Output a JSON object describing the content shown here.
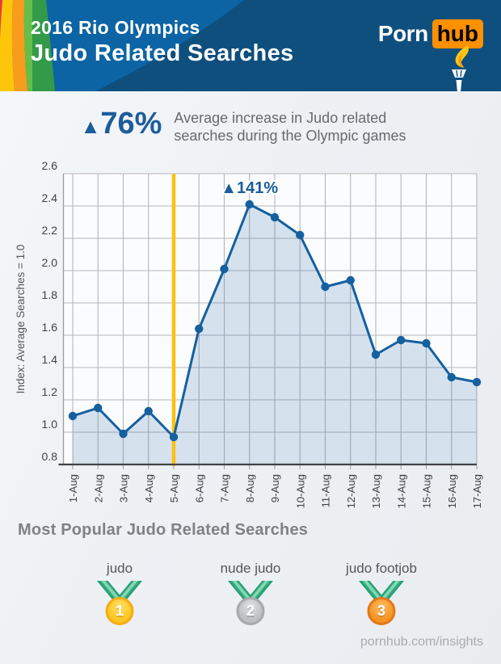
{
  "header": {
    "title_line1": "2016 Rio Olympics",
    "title_line2": "Judo Related Searches",
    "logo": {
      "porn": "Porn",
      "hub": "hub"
    }
  },
  "highlight": {
    "arrow": "▲",
    "value": "76%",
    "description": "Average increase in Judo related searches during the Olympic games"
  },
  "chart_data": {
    "type": "area",
    "x": [
      "1-Aug",
      "2-Aug",
      "3-Aug",
      "4-Aug",
      "5-Aug",
      "6-Aug",
      "7-Aug",
      "8-Aug",
      "9-Aug",
      "10-Aug",
      "11-Aug",
      "12-Aug",
      "13-Aug",
      "14-Aug",
      "15-Aug",
      "16-Aug",
      "17-Aug"
    ],
    "values": [
      1.1,
      1.15,
      0.99,
      1.13,
      0.97,
      1.64,
      2.01,
      2.41,
      2.33,
      2.22,
      1.9,
      1.94,
      1.48,
      1.57,
      1.55,
      1.34,
      1.31
    ],
    "ylabel": "Index: Average Searches = 1.0",
    "xlabel": "",
    "title": "",
    "ylim": [
      0.8,
      2.6
    ],
    "ytick_step": 0.2,
    "yticks": [
      "0.8",
      "1.0",
      "1.2",
      "1.4",
      "1.6",
      "1.8",
      "2.0",
      "2.2",
      "2.4",
      "2.6"
    ],
    "grid": true,
    "legend": "none",
    "annotation": {
      "text": "▲141%",
      "x": "8-Aug",
      "y": 2.41
    },
    "event_line": {
      "x": "5-Aug",
      "color": "#fdc011"
    },
    "line_color": "#15609f",
    "fill_color": "rgba(21,96,159,0.16)"
  },
  "popular": {
    "heading": "Most Popular Judo Related Searches",
    "medals": [
      {
        "rank": "1",
        "label": "judo",
        "tier": "gold"
      },
      {
        "rank": "2",
        "label": "nude judo",
        "tier": "silver"
      },
      {
        "rank": "3",
        "label": "judo footjob",
        "tier": "bronze"
      }
    ]
  },
  "footer": {
    "site": "pornhub.com/insights"
  },
  "colors": {
    "header_dark_blue": "#0e4f7e",
    "header_light_blue": "#0c64a4",
    "brand_orange": "#ff9000",
    "stat_blue": "#1c5c9b",
    "chart_line_blue": "#15609f",
    "event_yellow": "#fdc011",
    "ribbon_teal": "#3cb287",
    "medal_gold": "#fdc92a",
    "medal_silver": "#c2c3c5",
    "medal_bronze": "#f79a2b"
  }
}
